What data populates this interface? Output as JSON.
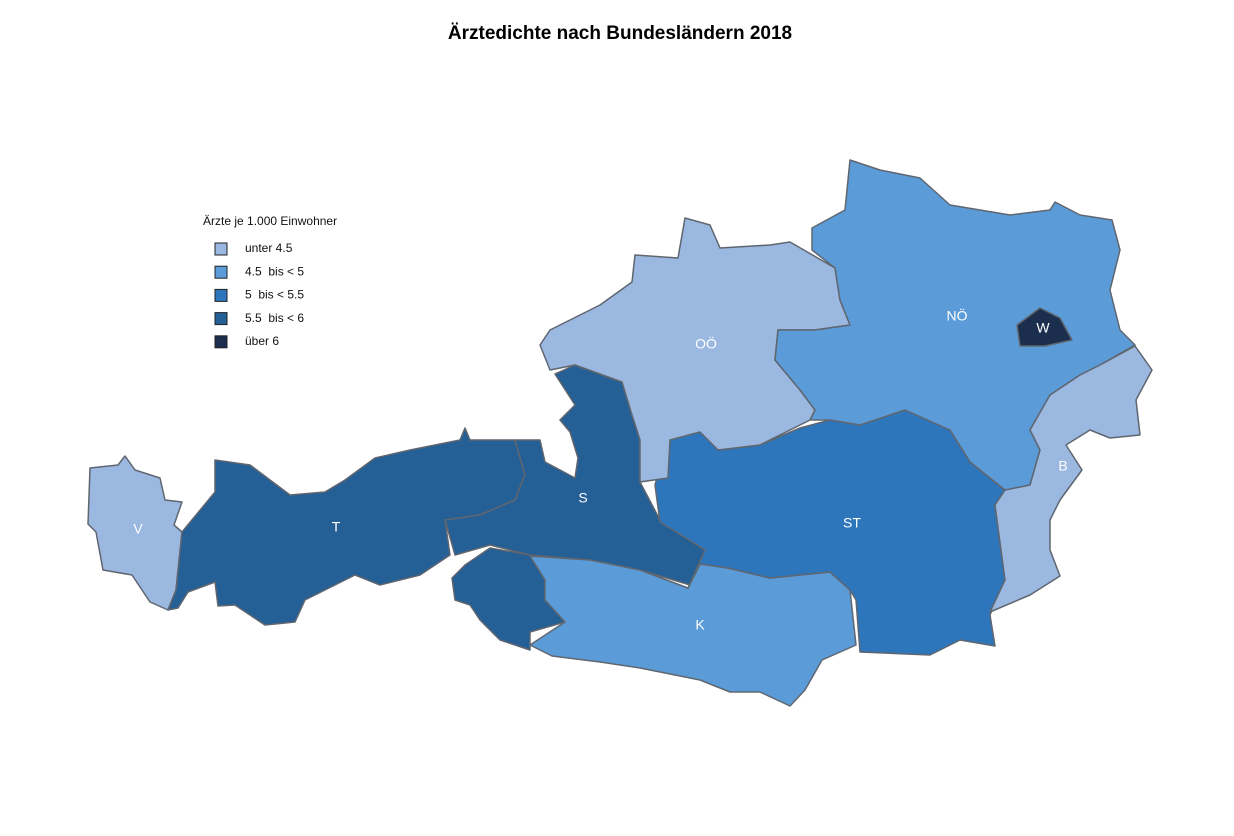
{
  "title": "Ärztedichte nach Bundesländern 2018",
  "legend": {
    "title": "Ärzte je 1.000 Einwohner",
    "items": [
      {
        "label": "unter 4.5",
        "color": "#9bb8e1"
      },
      {
        "label": "4.5  bis < 5",
        "color": "#5b9cd8"
      },
      {
        "label": "5  bis < 5.5",
        "color": "#2e76bb"
      },
      {
        "label": "5.5  bis < 6",
        "color": "#245f95"
      },
      {
        "label": "über 6",
        "color": "#1b2e4d"
      }
    ]
  },
  "regions": [
    {
      "label": "V",
      "color": "#9bb8e1"
    },
    {
      "label": "T",
      "color": "#245f95"
    },
    {
      "label": "S",
      "color": "#245f95"
    },
    {
      "label": "K",
      "color": "#5b9cd8"
    },
    {
      "label": "ST",
      "color": "#2e76bb"
    },
    {
      "label": "OÖ",
      "color": "#9bb8e1"
    },
    {
      "label": "NÖ",
      "color": "#5b9cd8"
    },
    {
      "label": "W",
      "color": "#1b2e4d"
    },
    {
      "label": "B",
      "color": "#9bb8e1"
    }
  ]
}
